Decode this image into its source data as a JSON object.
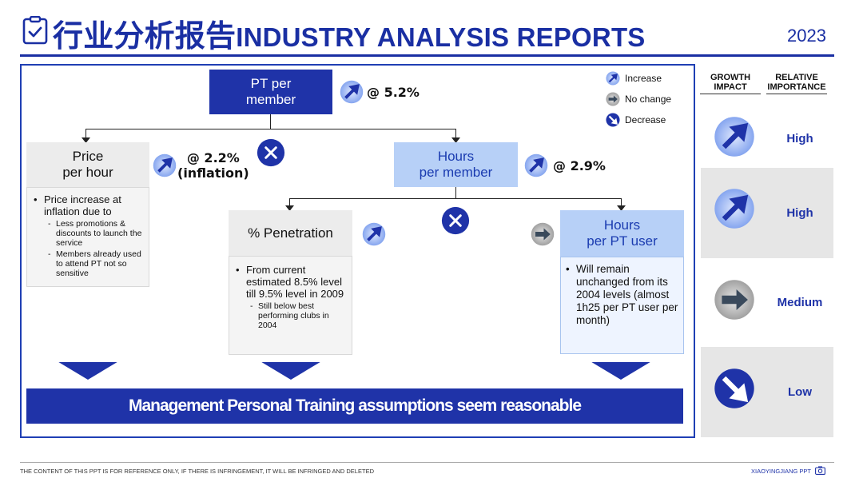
{
  "header": {
    "title_cn": "行业分析报告",
    "title_en": "INDUSTRY ANALYSIS REPORTS",
    "year": "2023"
  },
  "legend": {
    "increase": "Increase",
    "no_change": "No change",
    "decrease": "Decrease"
  },
  "tree": {
    "top": {
      "line1": "PT per",
      "line2": "member",
      "rate": "@ 5.2%"
    },
    "price": {
      "line1": "Price",
      "line2": "per hour",
      "rate_line1": "@ 2.2%",
      "rate_line2": "(inflation)"
    },
    "hours_member": {
      "line1": "Hours",
      "line2": "per member",
      "rate": "@ 2.9%"
    },
    "penetration": {
      "label": "% Penetration"
    },
    "hours_pt": {
      "line1": "Hours",
      "line2": "per PT user"
    }
  },
  "notes": {
    "price": {
      "bullet": "Price increase at inflation due to",
      "subs": [
        "Less promotions & discounts to launch the service",
        "Members already used to attend PT not so sensitive"
      ]
    },
    "penetration": {
      "bullet": "From current estimated 8.5% level till 9.5% level in 2009",
      "sub": "Still below best performing clubs in 2004"
    },
    "hours_pt": {
      "bullet": "Will remain unchanged from its 2004 levels (almost 1h25 per PT user per month)"
    }
  },
  "conclusion": "Management Personal Training assumptions seem reasonable",
  "right_panel": {
    "col1": [
      "GROWTH",
      "IMPACT"
    ],
    "col2": [
      "RELATIVE",
      "IMPORTANCE"
    ],
    "rows": [
      "High",
      "High",
      "Medium",
      "Low"
    ]
  },
  "footer": {
    "left": "THE CONTENT OF THIS PPT IS FOR REFERENCE ONLY, IF THERE IS INFRINGEMENT, IT WILL BE INFRINGED AND DELETED",
    "right": "XIAOYINGJIANG PPT"
  },
  "colors": {
    "navy": "#1f33a8",
    "light_blue": "#b7d0f7",
    "increase_icon": "#7aa0ef",
    "no_change_icon": "#8d8d8d",
    "decrease_icon": "#1f33a8"
  }
}
